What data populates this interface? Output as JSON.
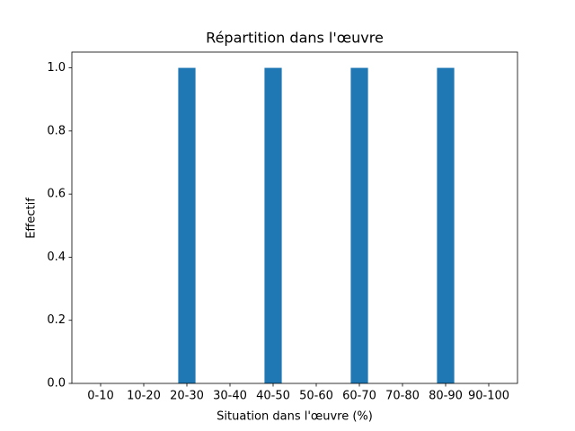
{
  "chart_data": {
    "type": "bar",
    "title": "Répartition dans l'œuvre",
    "x_label": "Situation dans l'œuvre (%)",
    "y_label": "Effectif",
    "categories": [
      "0-10",
      "10-20",
      "20-30",
      "30-40",
      "40-50",
      "50-60",
      "60-70",
      "70-80",
      "80-90",
      "90-100"
    ],
    "values": [
      0,
      0,
      1,
      0,
      1,
      0,
      1,
      0,
      1,
      0
    ],
    "color": "#1f77b4",
    "ylim": [
      0,
      1.05
    ],
    "yticks": [
      {
        "value": 0,
        "label": "0.0"
      },
      0.2,
      0.4,
      0.6,
      0.8,
      {
        "value": 1,
        "label": "1.0"
      }
    ],
    "grid": false
  }
}
